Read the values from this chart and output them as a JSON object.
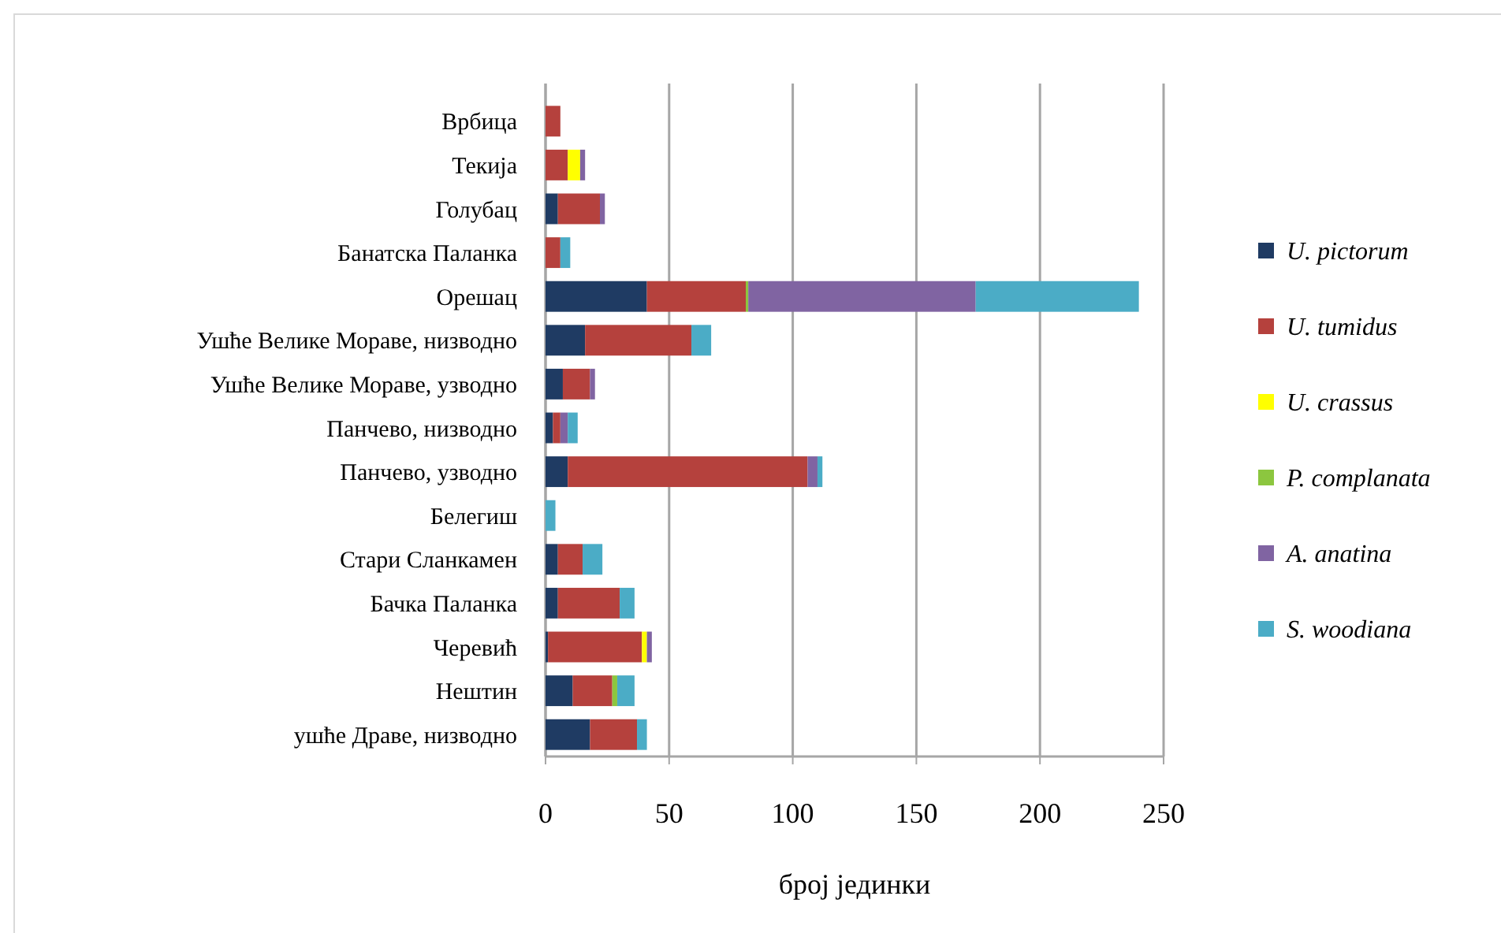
{
  "chart_data": {
    "type": "bar",
    "orientation": "horizontal",
    "stacked": true,
    "xlabel": "број јединки",
    "categories": [
      "Врбица",
      "Текија",
      "Голубац",
      "Банатска Паланка",
      "Орешац",
      "Ушће Велике Мораве, низводно",
      "Ушће Велике Мораве, узводно",
      "Панчево, низводно",
      "Панчево, узводно",
      "Белегиш",
      "Стари Сланкамен",
      "Бачка Паланка",
      "Черевић",
      "Нештин",
      "ушће Драве, низводно"
    ],
    "series": [
      {
        "name": "U. pictorum",
        "color": "#1f3b63",
        "values": [
          null,
          null,
          5,
          null,
          41,
          16,
          7,
          3,
          9,
          null,
          5,
          5,
          1,
          11,
          18
        ]
      },
      {
        "name": "U. tumidus",
        "color": "#b5413d",
        "values": [
          6,
          9,
          17,
          6,
          40,
          43,
          11,
          3,
          97,
          null,
          10,
          25,
          38,
          16,
          19
        ]
      },
      {
        "name": "U. crassus",
        "color": "#ffff00",
        "values": [
          null,
          5,
          null,
          null,
          null,
          null,
          null,
          null,
          null,
          null,
          null,
          null,
          2,
          null,
          null
        ]
      },
      {
        "name": "P. complanata",
        "color": "#8cc63f",
        "values": [
          null,
          null,
          null,
          null,
          1,
          null,
          null,
          null,
          null,
          null,
          null,
          null,
          null,
          2,
          null
        ]
      },
      {
        "name": "A. anatina",
        "color": "#8064a2",
        "values": [
          null,
          2,
          2,
          null,
          92,
          null,
          2,
          3,
          4,
          null,
          null,
          null,
          2,
          null,
          null
        ]
      },
      {
        "name": "S. woodiana",
        "color": "#4bacc6",
        "values": [
          null,
          null,
          null,
          4,
          66,
          8,
          null,
          4,
          2,
          4,
          8,
          6,
          null,
          7,
          4
        ]
      }
    ],
    "xlim": [
      0,
      250
    ],
    "xticks": [
      0,
      50,
      100,
      150,
      200,
      250
    ],
    "grid": "x",
    "legend": "right"
  }
}
